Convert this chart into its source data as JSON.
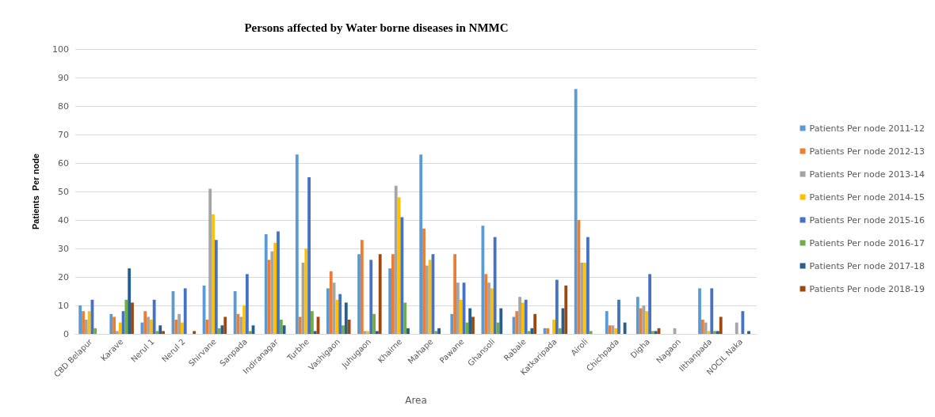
{
  "chart_data": {
    "type": "bar",
    "title": "Persons affected by Water borne diseases in NMMC",
    "xlabel": "Area",
    "ylabel": "Patients  Per node",
    "categories": [
      "CBD Belapur",
      "Karave",
      "Nerul 1",
      "Nerul 2",
      "Shirvane",
      "Sanpada",
      "Indiranagar",
      "Turbhe",
      "Vashigaon",
      "Juhugaon",
      "Khairne",
      "Mahape",
      "Pawane",
      "Ghansoli",
      "Rabale",
      "Katkaripada",
      "Airoli",
      "Chichpada",
      "Digha",
      "Nagaon",
      "Ilthanpada",
      "NOCIL Naka"
    ],
    "series": [
      {
        "name": "Patients Per node 2011-12",
        "color": "#5b9bd5",
        "values": [
          10,
          7,
          4,
          15,
          17,
          15,
          35,
          63,
          16,
          28,
          23,
          63,
          7,
          38,
          6,
          2,
          86,
          8,
          13,
          0,
          16,
          0
        ]
      },
      {
        "name": "Patients Per node 2012-13",
        "color": "#ed7d31",
        "values": [
          8,
          6,
          8,
          5,
          5,
          7,
          26,
          6,
          22,
          33,
          28,
          37,
          28,
          21,
          8,
          2,
          40,
          3,
          9,
          0,
          5,
          0
        ]
      },
      {
        "name": "Patients Per node 2013-14",
        "color": "#a5a5a5",
        "values": [
          5,
          1,
          6,
          7,
          51,
          6,
          29,
          25,
          18,
          1,
          52,
          24,
          18,
          18,
          13,
          0,
          25,
          3,
          10,
          2,
          4,
          4
        ]
      },
      {
        "name": "Patients Per node 2014-15",
        "color": "#ffc000",
        "values": [
          8,
          4,
          5,
          4,
          42,
          10,
          32,
          30,
          12,
          1,
          48,
          26,
          12,
          16,
          11,
          5,
          25,
          2,
          8,
          0,
          1,
          0
        ]
      },
      {
        "name": "Patients Per node 2015-16",
        "color": "#4472c4",
        "values": [
          12,
          8,
          12,
          16,
          33,
          21,
          36,
          55,
          14,
          26,
          41,
          28,
          18,
          34,
          12,
          19,
          34,
          12,
          21,
          0,
          16,
          8
        ]
      },
      {
        "name": "Patients Per node 2016-17",
        "color": "#70ad47",
        "values": [
          2,
          12,
          1,
          0,
          2,
          1,
          5,
          8,
          3,
          7,
          11,
          1,
          4,
          4,
          1,
          2,
          1,
          0,
          1,
          0,
          1,
          0
        ]
      },
      {
        "name": "Patients Per node 2017-18",
        "color": "#255e91",
        "values": [
          0,
          23,
          3,
          0,
          3,
          3,
          3,
          1,
          11,
          1,
          2,
          2,
          9,
          9,
          2,
          9,
          0,
          4,
          1,
          0,
          1,
          1
        ]
      },
      {
        "name": "Patients Per node 2018-19",
        "color": "#9e480e",
        "values": [
          0,
          11,
          1,
          1,
          6,
          0,
          0,
          6,
          5,
          28,
          0,
          0,
          6,
          0,
          7,
          17,
          0,
          0,
          2,
          0,
          6,
          0
        ]
      }
    ],
    "ylim": [
      0,
      100
    ],
    "yticks": [
      0,
      10,
      20,
      30,
      40,
      50,
      60,
      70,
      80,
      90,
      100
    ],
    "grid": "y",
    "legend": "right"
  }
}
